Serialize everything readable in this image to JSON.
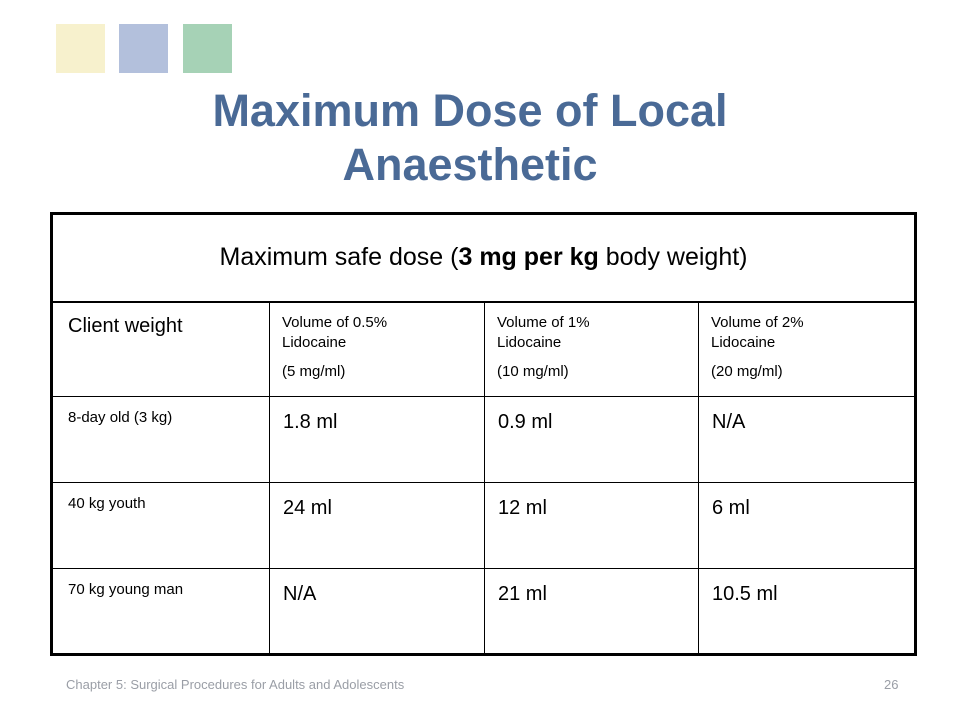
{
  "slide": {
    "title_line1": "Maximum Dose of Local",
    "title_line2": "Anaesthetic",
    "title_color": "#4a6a96",
    "decor_colors": [
      "#f7f1cd",
      "#b3c0dc",
      "#a6d2b6"
    ]
  },
  "table": {
    "header_prefix": "Maximum safe dose (",
    "header_bold": "3 mg per kg",
    "header_suffix": " body weight)",
    "columns": [
      {
        "label": "Client weight"
      },
      {
        "line1": "Volume of 0.5%",
        "line2": "Lidocaine",
        "conc": "(5 mg/ml)"
      },
      {
        "line1": "Volume of 1%",
        "line2": "Lidocaine",
        "conc": "(10 mg/ml)"
      },
      {
        "line1": "Volume of 2%",
        "line2": "Lidocaine",
        "conc": "(20 mg/ml)"
      }
    ],
    "rows": [
      {
        "label": "8-day old (3 kg)",
        "values": [
          "1.8 ml",
          "0.9 ml",
          "N/A"
        ]
      },
      {
        "label": "40 kg youth",
        "values": [
          "24 ml",
          "12 ml",
          "6 ml"
        ]
      },
      {
        "label": "70 kg young man",
        "values": [
          "N/A",
          "21 ml",
          "10.5 ml"
        ]
      }
    ]
  },
  "footer": {
    "text": "Chapter 5: Surgical Procedures for Adults and Adolescents",
    "page": "26"
  }
}
